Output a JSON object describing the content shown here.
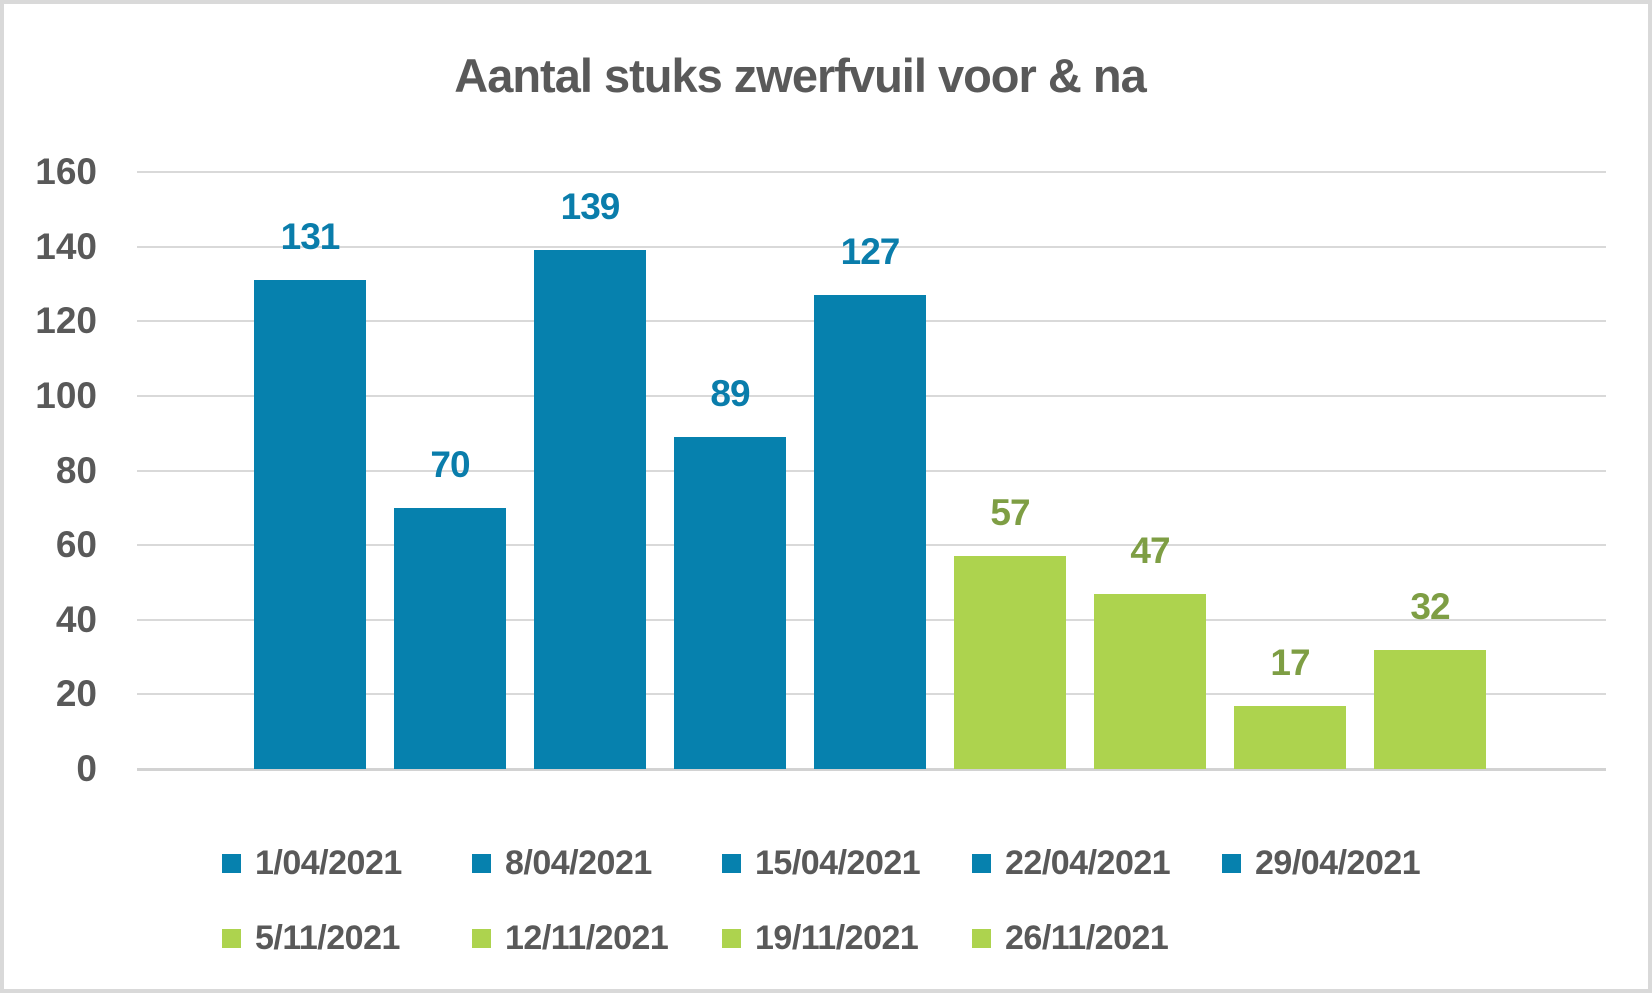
{
  "title": "Aantal stuks zwerfvuil voor & na",
  "colors": {
    "blue": "#0681AE",
    "green": "#ADD34E",
    "blue_label": "#0A7DAB",
    "green_label": "#7E9E44",
    "axis_text": "#595959",
    "title_text": "#595959",
    "gridline": "#D9D9D9",
    "frame_border": "#D9D9D9",
    "background": "#FFFFFF"
  },
  "chart_data": {
    "type": "bar",
    "title": "Aantal stuks zwerfvuil voor & na",
    "categories": [
      "1/04/2021",
      "8/04/2021",
      "15/04/2021",
      "22/04/2021",
      "29/04/2021",
      "5/11/2021",
      "12/11/2021",
      "19/11/2021",
      "26/11/2021"
    ],
    "values": [
      131,
      70,
      139,
      89,
      127,
      57,
      47,
      17,
      32
    ],
    "bar_color_keys": [
      "blue",
      "blue",
      "blue",
      "blue",
      "blue",
      "green",
      "green",
      "green",
      "green"
    ],
    "data_labels": [
      131,
      70,
      139,
      89,
      127,
      57,
      47,
      17,
      32
    ],
    "xlabel": "",
    "ylabel": "",
    "ylim": [
      0,
      160
    ],
    "yticks": [
      0,
      20,
      40,
      60,
      80,
      100,
      120,
      140,
      160
    ],
    "grid": true,
    "legend_position": "bottom",
    "legend_rows": [
      {
        "color": "blue",
        "items": [
          "1/04/2021",
          "8/04/2021",
          "15/04/2021",
          "22/04/2021",
          "29/04/2021"
        ]
      },
      {
        "color": "green",
        "items": [
          "5/11/2021",
          "12/11/2021",
          "19/11/2021",
          "26/11/2021"
        ]
      }
    ]
  }
}
